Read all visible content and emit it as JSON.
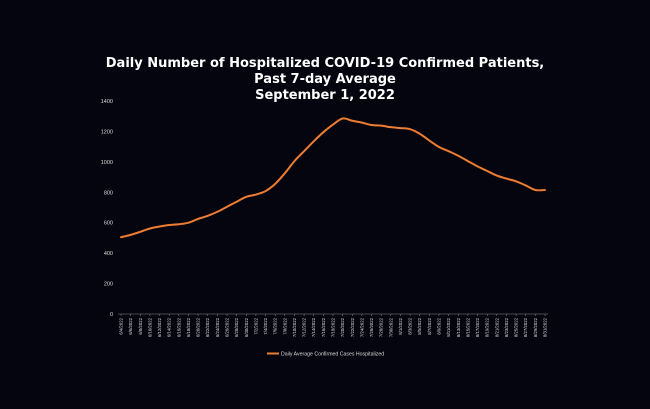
{
  "chart_data": {
    "type": "line",
    "title_lines": [
      "Daily Number of Hospitalized COVID-19 Confirmed Patients,",
      "Past 7-day Average",
      "September 1, 2022"
    ],
    "xlabel": "",
    "ylabel": "",
    "ylim": [
      0,
      1400
    ],
    "yticks": [
      "0",
      "200",
      "400",
      "600",
      "800",
      "1000",
      "1200",
      "1400"
    ],
    "ytick_values": [
      0,
      200,
      400,
      600,
      800,
      1000,
      1200,
      1400
    ],
    "grid": false,
    "legend_position": "bottom",
    "line_color": "#ee7d31",
    "x_tick_labels": [
      "6/4/2022",
      "6/6/2022",
      "6/8/2022",
      "6/10/2022",
      "6/12/2022",
      "6/14/2022",
      "6/16/2022",
      "6/18/2022",
      "6/20/2022",
      "6/22/2022",
      "6/24/2022",
      "6/26/2022",
      "6/28/2022",
      "6/30/2022",
      "7/2/2022",
      "7/4/2022",
      "7/6/2022",
      "7/8/2022",
      "7/10/2022",
      "7/12/2022",
      "7/14/2022",
      "7/16/2022",
      "7/18/2022",
      "7/20/2022",
      "7/22/2022",
      "7/24/2022",
      "7/26/2022",
      "7/28/2022",
      "7/30/2022",
      "8/1/2022",
      "8/3/2022",
      "8/5/2022",
      "8/7/2022",
      "8/9/2022",
      "8/11/2022",
      "8/13/2022",
      "8/15/2022",
      "8/17/2022",
      "8/19/2022",
      "8/21/2022",
      "8/23/2022",
      "8/25/2022",
      "8/27/2022",
      "8/29/2022",
      "8/31/2022"
    ],
    "series": [
      {
        "name": "Daily Average Confirmed Cases Hospitalized",
        "values": [
          505,
          520,
          540,
          562,
          575,
          585,
          590,
          600,
          625,
          645,
          672,
          705,
          738,
          770,
          785,
          808,
          855,
          925,
          1005,
          1070,
          1135,
          1195,
          1245,
          1285,
          1270,
          1258,
          1242,
          1238,
          1228,
          1222,
          1215,
          1185,
          1140,
          1098,
          1070,
          1040,
          1005,
          970,
          940,
          910,
          890,
          872,
          845,
          815,
          815
        ]
      }
    ]
  }
}
